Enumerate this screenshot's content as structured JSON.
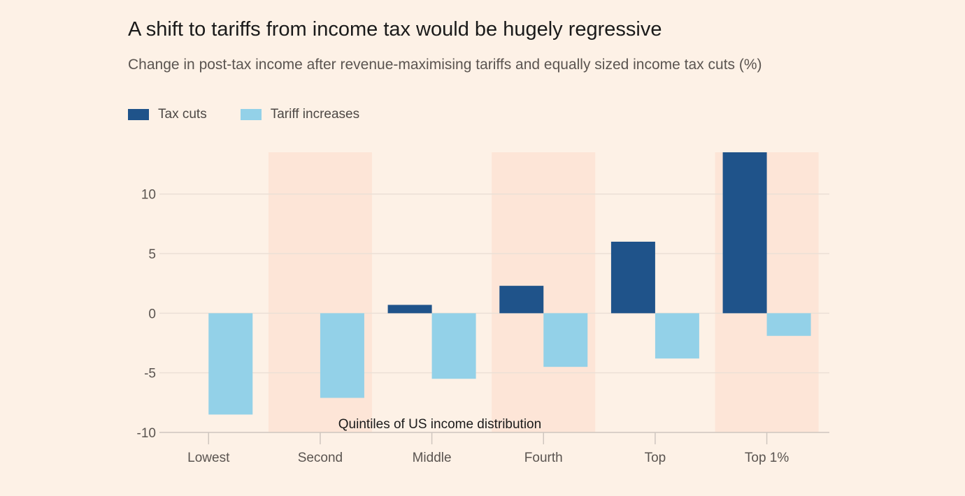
{
  "header": {
    "title": "A shift to tariffs from income tax would be hugely regressive",
    "subtitle": "Change in post-tax income after revenue-maximising tariffs and equally sized income tax cuts (%)"
  },
  "chart_data": {
    "type": "bar",
    "title": "A shift to tariffs from income tax would be hugely regressive",
    "subtitle": "Change in post-tax income after revenue-maximising tariffs and equally sized income tax cuts (%)",
    "xlabel": "Quintiles of US income distribution",
    "ylabel": "",
    "categories": [
      "Lowest",
      "Second",
      "Middle",
      "Fourth",
      "Top",
      "Top 1%"
    ],
    "series": [
      {
        "name": "Tax cuts",
        "color": "#1f538a",
        "values": [
          0,
          0,
          0.7,
          2.3,
          6.0,
          13.5
        ]
      },
      {
        "name": "Tariff increases",
        "color": "#93d1e8",
        "values": [
          -8.5,
          -7.1,
          -5.5,
          -4.5,
          -3.8,
          -1.9
        ]
      }
    ],
    "ylim": [
      -10,
      13.5
    ],
    "yticks": [
      -10,
      -5,
      0,
      5,
      10
    ],
    "ytick_labels": [
      "-10",
      "-5",
      "0",
      "5",
      "10"
    ],
    "grid": true,
    "legend_position": "top-left",
    "shaded_categories": [
      "Second",
      "Fourth",
      "Top 1%"
    ],
    "band_color": "#fde5d7"
  }
}
